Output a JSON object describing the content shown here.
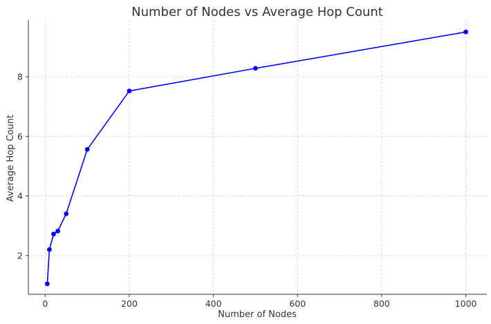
{
  "chart_data": {
    "type": "line",
    "title": "Number of Nodes vs Average Hop Count",
    "xlabel": "Number of Nodes",
    "ylabel": "Average Hop Count",
    "xlim": [
      -40,
      1050
    ],
    "ylim": [
      0.7,
      9.9
    ],
    "xticks": [
      0,
      200,
      400,
      600,
      800,
      1000
    ],
    "yticks": [
      2,
      4,
      6,
      8
    ],
    "grid": true,
    "series": [
      {
        "color": "#0000ff",
        "marker": "circle",
        "x": [
          5,
          10,
          20,
          30,
          50,
          100,
          200,
          500,
          1000
        ],
        "y": [
          1.05,
          2.2,
          2.72,
          2.82,
          3.4,
          5.56,
          7.52,
          8.28,
          9.5
        ]
      }
    ]
  }
}
